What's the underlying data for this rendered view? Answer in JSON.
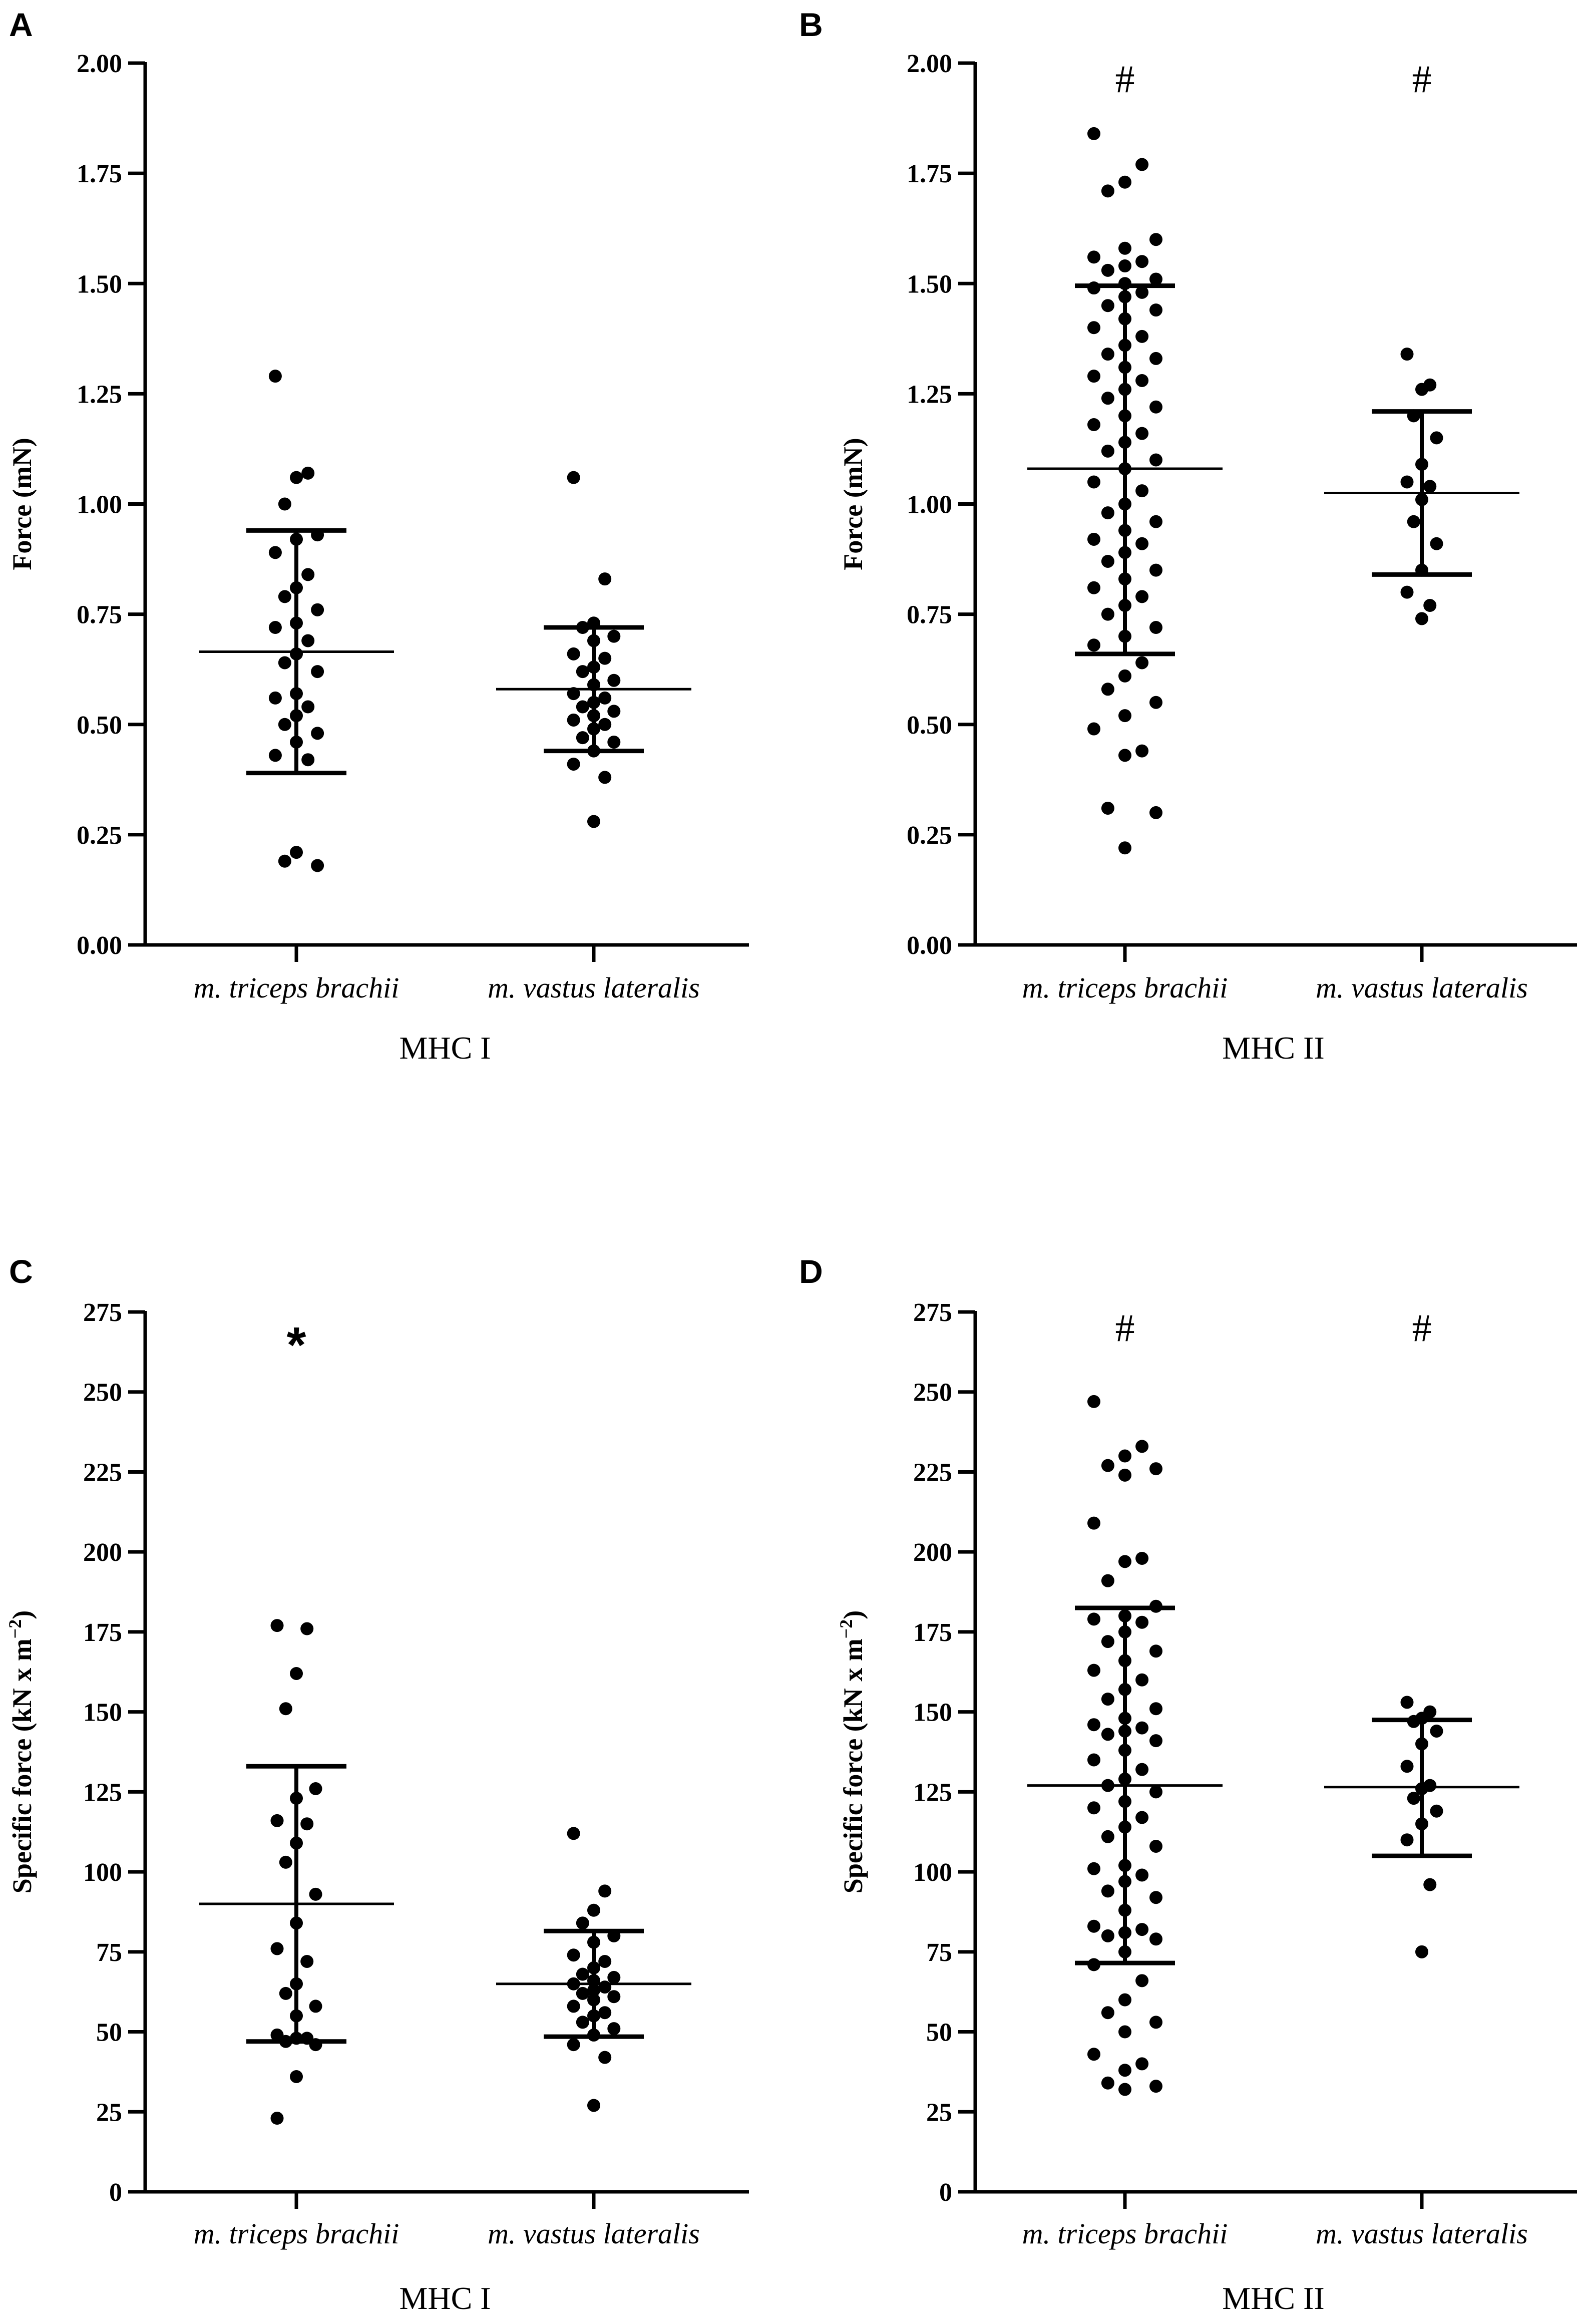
{
  "chart_data": [
    {
      "type": "scatter",
      "panel": "A",
      "ylabel": "Force (mN)",
      "ylim": [
        0,
        2.0
      ],
      "yticks": [
        0.0,
        0.25,
        0.5,
        0.75,
        1.0,
        1.25,
        1.5,
        1.75,
        2.0
      ],
      "tick_labels": [
        "0.00",
        "0.25",
        "0.50",
        "0.75",
        "1.00",
        "1.25",
        "1.50",
        "1.75",
        "2.00"
      ],
      "categories": [
        "m. triceps brachii",
        "m. vastus lateralis"
      ],
      "group_label": "MHC I",
      "series": [
        {
          "name": "m. triceps brachii",
          "mean": 0.665,
          "sd_low": 0.39,
          "sd_high": 0.94,
          "annotation": "",
          "points": [
            1.29,
            1.07,
            1.06,
            1.0,
            0.93,
            0.92,
            0.89,
            0.84,
            0.81,
            0.79,
            0.76,
            0.73,
            0.72,
            0.69,
            0.66,
            0.64,
            0.62,
            0.57,
            0.56,
            0.54,
            0.52,
            0.5,
            0.48,
            0.46,
            0.43,
            0.42,
            0.21,
            0.19,
            0.18
          ]
        },
        {
          "name": "m. vastus lateralis",
          "mean": 0.58,
          "sd_low": 0.44,
          "sd_high": 0.72,
          "annotation": "",
          "points": [
            1.06,
            0.83,
            0.73,
            0.72,
            0.7,
            0.69,
            0.66,
            0.65,
            0.63,
            0.62,
            0.6,
            0.59,
            0.57,
            0.56,
            0.55,
            0.54,
            0.53,
            0.52,
            0.51,
            0.5,
            0.49,
            0.47,
            0.46,
            0.44,
            0.41,
            0.38,
            0.28
          ]
        }
      ]
    },
    {
      "type": "scatter",
      "panel": "B",
      "ylabel": "Force (mN)",
      "ylim": [
        0,
        2.0
      ],
      "yticks": [
        0.0,
        0.25,
        0.5,
        0.75,
        1.0,
        1.25,
        1.5,
        1.75,
        2.0
      ],
      "tick_labels": [
        "0.00",
        "0.25",
        "0.50",
        "0.75",
        "1.00",
        "1.25",
        "1.50",
        "1.75",
        "2.00"
      ],
      "categories": [
        "m. triceps brachii",
        "m. vastus lateralis"
      ],
      "group_label": "MHC II",
      "series": [
        {
          "name": "m. triceps brachii",
          "mean": 1.08,
          "sd_low": 0.66,
          "sd_high": 1.495,
          "annotation": "#",
          "points": [
            1.84,
            1.77,
            1.73,
            1.71,
            1.6,
            1.58,
            1.56,
            1.55,
            1.54,
            1.53,
            1.51,
            1.5,
            1.49,
            1.48,
            1.47,
            1.45,
            1.44,
            1.42,
            1.4,
            1.38,
            1.36,
            1.34,
            1.33,
            1.31,
            1.29,
            1.28,
            1.26,
            1.24,
            1.22,
            1.2,
            1.18,
            1.16,
            1.14,
            1.12,
            1.1,
            1.08,
            1.05,
            1.03,
            1.0,
            0.98,
            0.96,
            0.94,
            0.92,
            0.91,
            0.89,
            0.87,
            0.85,
            0.83,
            0.81,
            0.79,
            0.77,
            0.75,
            0.72,
            0.7,
            0.68,
            0.64,
            0.61,
            0.58,
            0.55,
            0.52,
            0.49,
            0.44,
            0.43,
            0.31,
            0.3,
            0.22
          ]
        },
        {
          "name": "m. vastus lateralis",
          "mean": 1.025,
          "sd_low": 0.84,
          "sd_high": 1.21,
          "annotation": "#",
          "points": [
            1.34,
            1.27,
            1.26,
            1.2,
            1.15,
            1.09,
            1.05,
            1.04,
            1.01,
            0.96,
            0.91,
            0.85,
            0.8,
            0.77,
            0.74
          ]
        }
      ]
    },
    {
      "type": "scatter",
      "panel": "C",
      "ylabel": "Specific force (kN x m",
      "ylabel_sup": "−2",
      "ylabel_end": ")",
      "ylim": [
        0,
        275
      ],
      "yticks": [
        0,
        25,
        50,
        75,
        100,
        125,
        150,
        175,
        200,
        225,
        250,
        275
      ],
      "tick_labels": [
        "0",
        "25",
        "50",
        "75",
        "100",
        "125",
        "150",
        "175",
        "200",
        "225",
        "250",
        "275"
      ],
      "categories": [
        "m. triceps brachii",
        "m. vastus lateralis"
      ],
      "group_label": "MHC I",
      "series": [
        {
          "name": "m. triceps brachii",
          "mean": 90,
          "sd_low": 47,
          "sd_high": 133,
          "annotation": "*",
          "points": [
            177,
            176,
            162,
            151,
            126,
            123,
            116,
            115,
            109,
            103,
            93,
            84,
            76,
            72,
            65,
            62,
            58,
            55,
            49,
            48,
            48,
            47,
            46,
            36,
            23
          ]
        },
        {
          "name": "m. vastus lateralis",
          "mean": 65,
          "sd_low": 48.5,
          "sd_high": 81.5,
          "annotation": "",
          "points": [
            112,
            94,
            88,
            84,
            80,
            78,
            74,
            72,
            70,
            68,
            67,
            66,
            65,
            64,
            63,
            62,
            61,
            60,
            58,
            56,
            55,
            53,
            51,
            49,
            46,
            42,
            27
          ]
        }
      ]
    },
    {
      "type": "scatter",
      "panel": "D",
      "ylabel": "Specific force (kN x m",
      "ylabel_sup": "−2",
      "ylabel_end": ")",
      "ylim": [
        0,
        275
      ],
      "yticks": [
        0,
        25,
        50,
        75,
        100,
        125,
        150,
        175,
        200,
        225,
        250,
        275
      ],
      "tick_labels": [
        "0",
        "25",
        "50",
        "75",
        "100",
        "125",
        "150",
        "175",
        "200",
        "225",
        "250",
        "275"
      ],
      "categories": [
        "m. triceps brachii",
        "m. vastus lateralis"
      ],
      "group_label": "MHC II",
      "series": [
        {
          "name": "m. triceps brachii",
          "mean": 127,
          "sd_low": 71.5,
          "sd_high": 182.5,
          "annotation": "#",
          "points": [
            247,
            233,
            230,
            227,
            226,
            224,
            209,
            198,
            197,
            191,
            183,
            180,
            179,
            178,
            175,
            172,
            169,
            166,
            163,
            160,
            157,
            154,
            151,
            148,
            146,
            145,
            144,
            143,
            141,
            138,
            135,
            132,
            129,
            127,
            125,
            122,
            120,
            117,
            114,
            111,
            108,
            102,
            101,
            99,
            97,
            94,
            92,
            88,
            83,
            82,
            81,
            80,
            79,
            75,
            71,
            66,
            60,
            56,
            53,
            50,
            43,
            40,
            38,
            34,
            33,
            32
          ]
        },
        {
          "name": "m. vastus lateralis",
          "mean": 126.5,
          "sd_low": 105,
          "sd_high": 147.5,
          "annotation": "#",
          "points": [
            153,
            150,
            148,
            147,
            144,
            140,
            133,
            127,
            126,
            123,
            119,
            115,
            110,
            96,
            75
          ]
        }
      ]
    }
  ]
}
